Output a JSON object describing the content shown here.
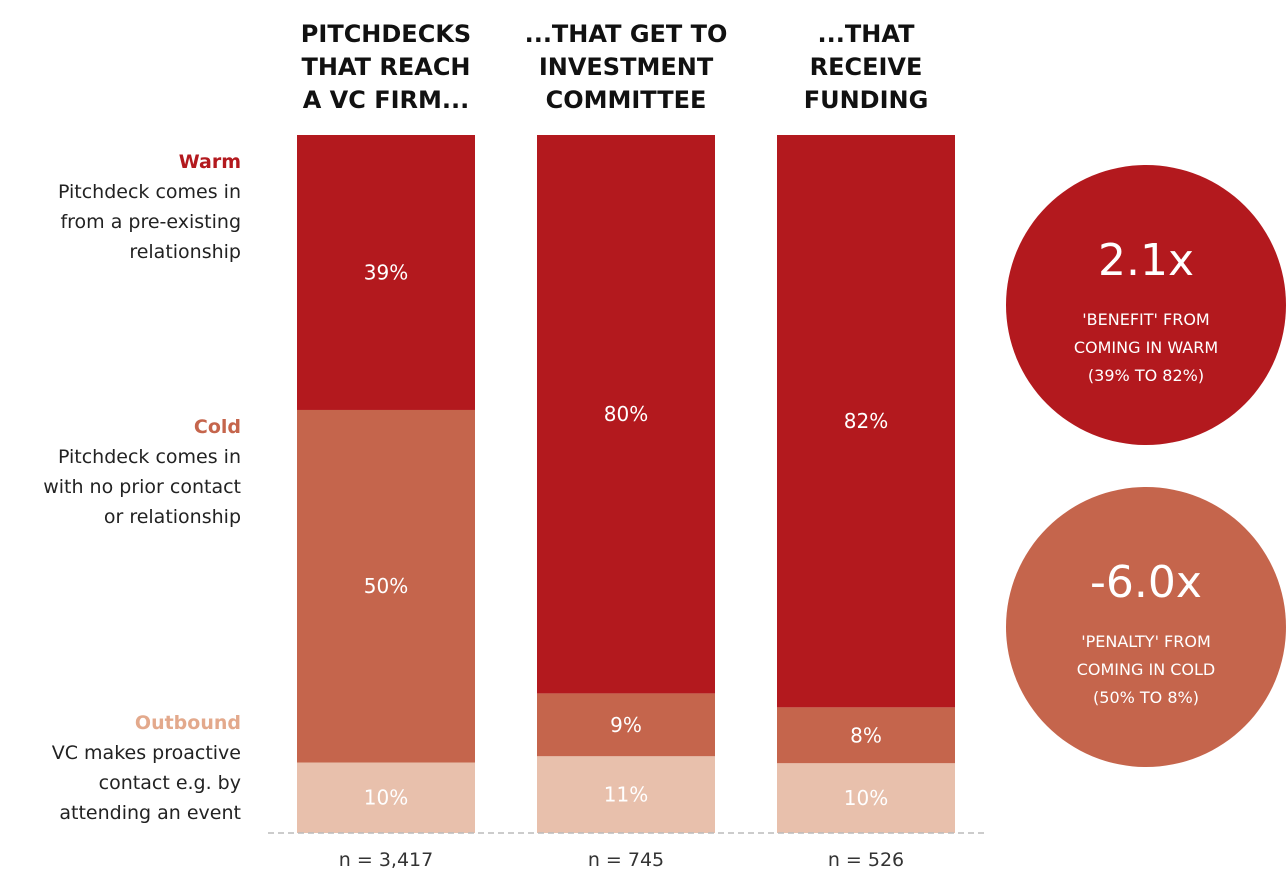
{
  "colors": {
    "warm": "#b3191e",
    "cold": "#c5654c",
    "outbound": "#e8c0ac",
    "warm_label": "#b3191e",
    "cold_label": "#c5654c",
    "outbound_label": "#e3a98c"
  },
  "chart_data": {
    "type": "bar",
    "stacked": true,
    "orientation": "vertical",
    "normalized_to": 100,
    "categories": [
      [
        "PITCHDECKS",
        "THAT REACH",
        "A VC FIRM..."
      ],
      [
        "...THAT GET TO",
        "INVESTMENT",
        "COMMITTEE"
      ],
      [
        "...THAT",
        "RECEIVE",
        "FUNDING"
      ]
    ],
    "series": [
      {
        "name": "Outbound",
        "color": "#e8c0ac",
        "values": [
          10,
          11,
          10
        ],
        "labels": [
          "10%",
          "11%",
          "10%"
        ]
      },
      {
        "name": "Cold",
        "color": "#c5654c",
        "values": [
          50,
          9,
          8
        ],
        "labels": [
          "50%",
          "9%",
          "8%"
        ]
      },
      {
        "name": "Warm",
        "color": "#b3191e",
        "values": [
          39,
          80,
          82
        ],
        "labels": [
          "39%",
          "80%",
          "82%"
        ]
      }
    ],
    "sample_sizes": [
      "n = 3,417",
      "n = 745",
      "n = 526"
    ],
    "legend_placement": "left",
    "legend": [
      {
        "name": "Warm",
        "description": [
          "Pitchdeck comes in",
          "from a pre-existing",
          "relationship"
        ]
      },
      {
        "name": "Cold",
        "description": [
          "Pitchdeck comes in",
          "with no prior contact",
          "or relationship"
        ]
      },
      {
        "name": "Outbound",
        "description": [
          "VC makes proactive",
          "contact e.g. by",
          "attending an event"
        ]
      }
    ],
    "annotations": [
      {
        "value": "2.1x",
        "lines": [
          "'BENEFIT' FROM",
          "COMING IN WARM",
          "(39% TO 82%)"
        ],
        "color": "#b3191e"
      },
      {
        "value": "-6.0x",
        "lines": [
          "'PENALTY' FROM",
          "COMING IN COLD",
          "(50% TO 8%)"
        ],
        "color": "#c5654c"
      }
    ]
  }
}
